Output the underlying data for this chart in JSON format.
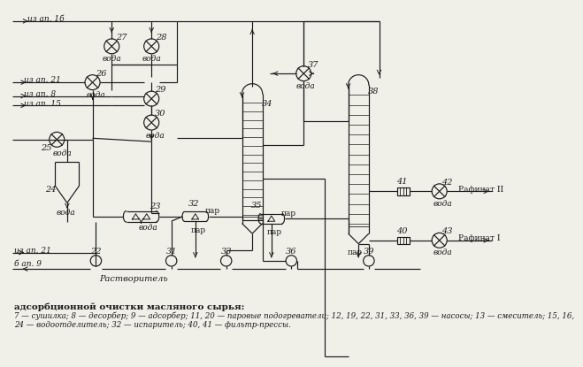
{
  "bg_color": "#f0efe8",
  "line_color": "#1a1a1a",
  "caption_line1": "адсорбционной очистки масляного сырья:",
  "caption_line2": "7 — сушилка; 8 — десорбер; 9 — адсорбер; 11, 20 — паровые подогреватели; 12, 19, 22, 31, 33, 36, 39 — насосы; 13 — смеситель; 15, 16,",
  "caption_line3": "24 — водоотделитель; 32 — испаритель; 40, 41 — фильтр-прессы.",
  "voda": "вода",
  "par": "пар",
  "rastvoritel": "Растворитель",
  "rafinat1": "Рафинат I",
  "rafinat2": "Рафинат II",
  "iz_ap_16": "из ап. 1б",
  "iz_ap_21": "из ап. 21",
  "iz_ap_8": "из ап. 8",
  "iz_ap_15": "из ап. 15",
  "b_ap_9": "б ап. 9"
}
